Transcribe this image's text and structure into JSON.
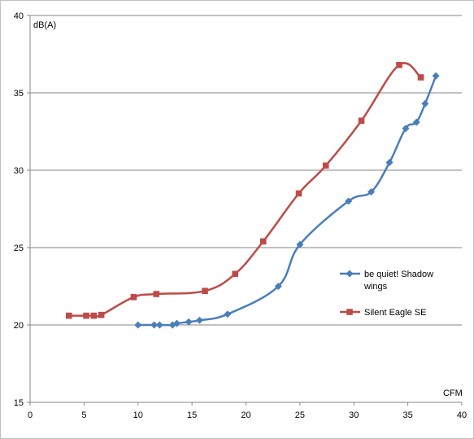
{
  "chart_data": {
    "type": "line",
    "xlabel": "CFM",
    "ylabel": "dB(A)",
    "xlim": [
      0,
      40
    ],
    "ylim": [
      15,
      40
    ],
    "x_ticks": [
      0,
      5,
      10,
      15,
      20,
      25,
      30,
      35,
      40
    ],
    "y_ticks": [
      15,
      20,
      25,
      30,
      35,
      40
    ],
    "grid": "horizontal",
    "legend_position": "right",
    "series": [
      {
        "name": "be quiet! Shadow wings",
        "legend_lines": [
          "be quiet! Shadow",
          "wings"
        ],
        "color": "#4a7ebb",
        "marker": "diamond",
        "x": [
          10.0,
          11.5,
          12.0,
          13.2,
          13.6,
          14.7,
          15.7,
          18.3,
          23.0,
          25.0,
          29.5,
          31.6,
          33.3,
          34.8,
          35.8,
          36.6,
          37.6
        ],
        "y": [
          20.0,
          20.0,
          20.0,
          20.0,
          20.1,
          20.2,
          20.3,
          20.7,
          22.5,
          25.2,
          28.0,
          28.6,
          30.5,
          32.7,
          33.1,
          34.3,
          36.1
        ]
      },
      {
        "name": "Silent Eagle SE",
        "legend_lines": [
          "Silent Eagle SE"
        ],
        "color": "#be4b48",
        "marker": "square",
        "x": [
          3.6,
          5.2,
          5.9,
          6.6,
          9.6,
          11.7,
          16.2,
          19.0,
          21.6,
          24.9,
          27.4,
          30.7,
          34.2,
          36.2
        ],
        "y": [
          20.6,
          20.6,
          20.6,
          20.65,
          21.8,
          22.0,
          22.2,
          23.3,
          25.4,
          28.5,
          30.3,
          33.2,
          36.8,
          36.0
        ]
      }
    ]
  }
}
